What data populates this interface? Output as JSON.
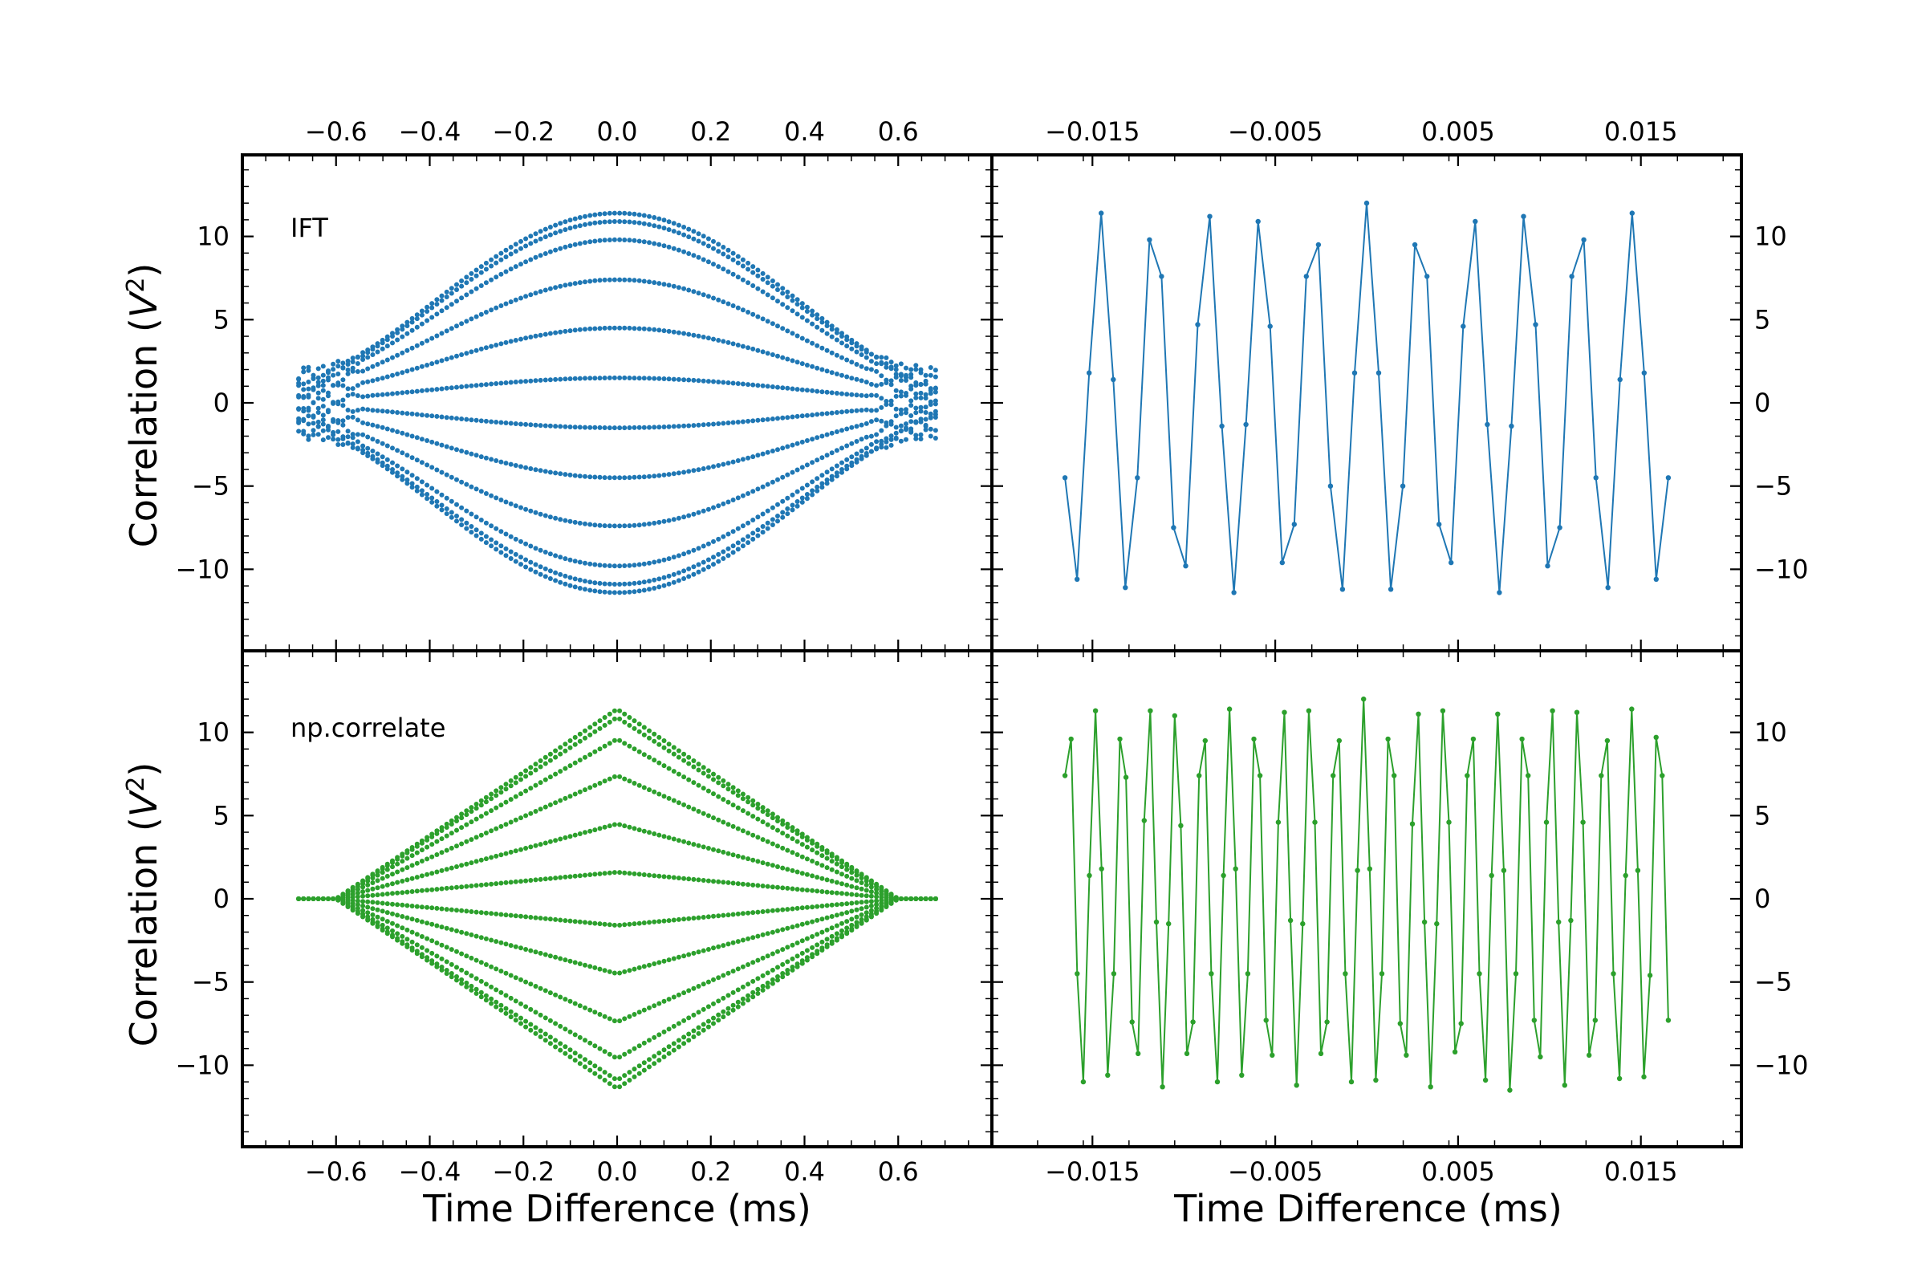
{
  "figure": {
    "panels": [
      {
        "id": "top-left",
        "annotation": "IFT",
        "color": "#1f77b4",
        "x_ticks": [
          "−0.6",
          "−0.4",
          "−0.2",
          "0.0",
          "0.2",
          "0.4",
          "0.6"
        ],
        "x_tick_values": [
          -0.6,
          -0.4,
          -0.2,
          0.0,
          0.2,
          0.4,
          0.6
        ],
        "y_ticks": [
          "10",
          "5",
          "0",
          "−5",
          "−10"
        ],
        "y_tick_values": [
          10,
          5,
          0,
          -5,
          -10
        ],
        "ylabel": "Correlation (V²)"
      },
      {
        "id": "top-right",
        "annotation": "",
        "color": "#1f77b4",
        "x_ticks": [
          "−0.015",
          "−0.005",
          "0.005",
          "0.015"
        ],
        "x_tick_values": [
          -0.015,
          -0.005,
          0.005,
          0.015
        ],
        "y_ticks": [
          "10",
          "5",
          "0",
          "−5",
          "−10"
        ],
        "y_tick_values": [
          10,
          5,
          0,
          -5,
          -10
        ]
      },
      {
        "id": "bottom-left",
        "annotation": "np.correlate",
        "color": "#2ca02c",
        "x_ticks": [
          "−0.6",
          "−0.4",
          "−0.2",
          "0.0",
          "0.2",
          "0.4",
          "0.6"
        ],
        "x_tick_values": [
          -0.6,
          -0.4,
          -0.2,
          0.0,
          0.2,
          0.4,
          0.6
        ],
        "y_ticks": [
          "10",
          "5",
          "0",
          "−5",
          "−10"
        ],
        "y_tick_values": [
          10,
          5,
          0,
          -5,
          -10
        ],
        "ylabel": "Correlation (V²)",
        "xlabel": "Time Difference (ms)"
      },
      {
        "id": "bottom-right",
        "annotation": "",
        "color": "#2ca02c",
        "x_ticks": [
          "−0.015",
          "−0.005",
          "0.005",
          "0.015"
        ],
        "x_tick_values": [
          -0.015,
          -0.005,
          0.005,
          0.015
        ],
        "y_ticks": [
          "10",
          "5",
          "0",
          "−5",
          "−10"
        ],
        "y_tick_values": [
          10,
          5,
          0,
          -5,
          -10
        ],
        "xlabel": "Time Difference (ms)"
      }
    ]
  },
  "chart_data": [
    {
      "type": "scatter",
      "panel": "top-left",
      "annotation": "IFT",
      "xlim": [
        -0.8,
        0.8
      ],
      "ylim": [
        -14.9,
        14.9
      ],
      "x_range": [
        -0.68,
        0.68
      ],
      "envelope_peak": 11.8,
      "envelope_edge": 1.5,
      "band_levels": [
        11.4,
        10.9,
        9.8,
        7.4,
        4.5,
        1.5,
        -1.5,
        -4.5,
        -7.4,
        -9.8,
        -10.9,
        -11.4
      ],
      "color": "#1f77b4"
    },
    {
      "type": "line",
      "panel": "top-right",
      "xlim": [
        -0.0205,
        0.0205
      ],
      "ylim": [
        -14.9,
        14.9
      ],
      "x_range": [
        -0.0165,
        0.0165
      ],
      "color": "#1f77b4",
      "y": [
        -4.5,
        -10.6,
        1.8,
        11.4,
        1.4,
        -11.1,
        -4.5,
        9.8,
        7.6,
        -7.5,
        -9.8,
        4.7,
        11.2,
        -1.4,
        -11.4,
        -1.3,
        10.9,
        4.6,
        -9.6,
        -7.3,
        7.6,
        9.5,
        -5.0,
        -11.2,
        1.8,
        12.0,
        1.8,
        -11.2,
        -5.0,
        9.5,
        7.6,
        -7.3,
        -9.6,
        4.6,
        10.9,
        -1.3,
        -11.4,
        -1.4,
        11.2,
        4.7,
        -9.8,
        -7.5,
        7.6,
        9.8,
        -4.5,
        -11.1,
        1.4,
        11.4,
        1.8,
        -10.6,
        -4.5
      ]
    },
    {
      "type": "scatter",
      "panel": "bottom-left",
      "annotation": "np.correlate",
      "xlim": [
        -0.8,
        0.8
      ],
      "ylim": [
        -14.9,
        14.9
      ],
      "x_range": [
        -0.68,
        0.68
      ],
      "support": [
        -0.6,
        0.6
      ],
      "band_levels": [
        11.4,
        10.9,
        9.6,
        7.4,
        4.5,
        1.6,
        -1.6,
        -4.5,
        -7.4,
        -9.6,
        -10.9,
        -11.4
      ],
      "color": "#2ca02c"
    },
    {
      "type": "line",
      "panel": "bottom-right",
      "xlim": [
        -0.0205,
        0.0205
      ],
      "ylim": [
        -14.9,
        14.9
      ],
      "x_range": [
        -0.0165,
        0.0165
      ],
      "color": "#2ca02c",
      "y": [
        7.4,
        9.6,
        -4.5,
        -11.0,
        1.4,
        11.3,
        1.8,
        -10.6,
        -4.5,
        9.6,
        7.3,
        -7.4,
        -9.3,
        4.7,
        11.3,
        -1.4,
        -11.3,
        -1.5,
        11.0,
        4.4,
        -9.3,
        -7.4,
        7.4,
        9.5,
        -4.5,
        -11.0,
        1.4,
        11.4,
        1.8,
        -10.6,
        -4.5,
        9.6,
        7.4,
        -7.3,
        -9.4,
        4.6,
        11.2,
        -1.3,
        -11.2,
        -1.5,
        11.3,
        4.6,
        -9.3,
        -7.4,
        7.4,
        9.5,
        -4.5,
        -11.0,
        1.7,
        12.0,
        1.8,
        -10.9,
        -4.5,
        9.6,
        7.4,
        -7.5,
        -9.4,
        4.5,
        11.1,
        -1.4,
        -11.3,
        -1.5,
        11.3,
        4.6,
        -9.2,
        -7.5,
        7.4,
        9.6,
        -4.5,
        -10.9,
        1.4,
        11.1,
        1.7,
        -11.5,
        -4.5,
        9.6,
        7.4,
        -7.3,
        -9.5,
        4.6,
        11.3,
        -1.4,
        -11.2,
        -1.3,
        11.2,
        4.6,
        -9.4,
        -7.3,
        7.4,
        9.5,
        -4.5,
        -10.8,
        1.4,
        11.4,
        1.7,
        -10.7,
        -4.6,
        9.7,
        7.4,
        -7.3
      ]
    }
  ]
}
